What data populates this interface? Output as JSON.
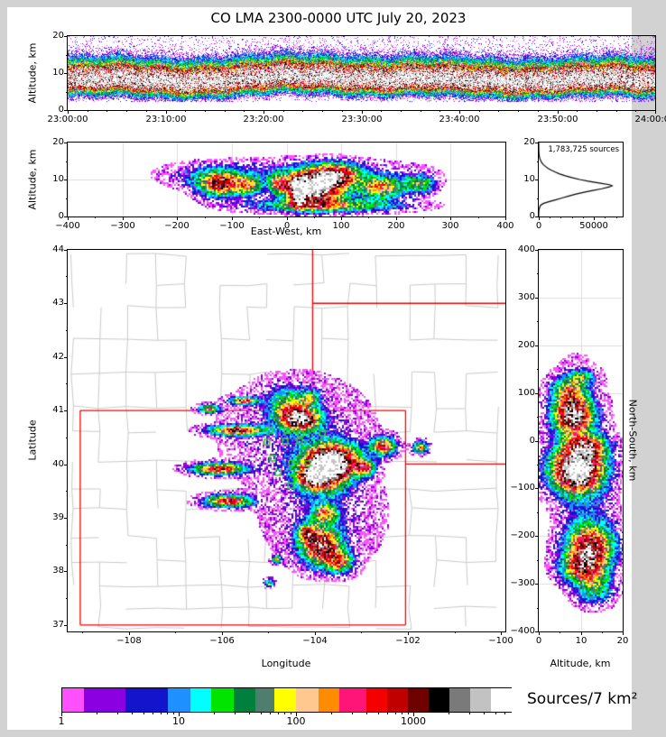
{
  "title": "CO LMA 2300-0000 UTC July 20, 2023",
  "colors": {
    "ramp": [
      "#ff50ff",
      "#8a00e0",
      "#1414cc",
      "#1e90ff",
      "#00ffff",
      "#00e400",
      "#00803c",
      "#4f7d6e",
      "#ffff00",
      "#ffc88e",
      "#ff8c00",
      "#ff1478",
      "#f40000",
      "#c00000",
      "#6e0000",
      "#000000",
      "#7a7a7a",
      "#c2c2c2",
      "#ffffff"
    ],
    "state_border": "#f00000",
    "county_border": "#c9c9c9",
    "gridline": "#dcdcdc",
    "station": "#35d035",
    "curve": "#000000",
    "background": "#d2d2d2",
    "figure": "#ffffff"
  },
  "chart_data": [
    {
      "id": "time_height",
      "type": "heatmap",
      "ylabel": "Altitude, km",
      "x_tick_labels": [
        "23:00:00",
        "23:10:00",
        "23:20:00",
        "23:30:00",
        "23:40:00",
        "23:50:00",
        "24:00:00"
      ],
      "x_tick_seconds": [
        0,
        600,
        1200,
        1800,
        2400,
        3000,
        3600
      ],
      "y_ticks": [
        0,
        10,
        20
      ],
      "y_range_km": [
        0,
        20
      ],
      "band": {
        "center": 8.0,
        "width_low": 2.9,
        "width_high": 4.0,
        "peak": 1.38,
        "bump_center_s": 1570,
        "bump_width_s": 420,
        "bump_amp": 1.1
      }
    },
    {
      "id": "ew_height",
      "type": "heatmap",
      "xlabel": "East-West, km",
      "ylabel": "Altitude, km",
      "x_ticks": [
        -400,
        -300,
        -200,
        -100,
        0,
        100,
        200,
        300,
        400
      ],
      "y_ticks": [
        0,
        10,
        20
      ],
      "x_range_km": [
        -400,
        400
      ],
      "y_range_km": [
        0,
        20
      ],
      "blobs": [
        [
          50,
          8,
          52,
          4.2,
          1.26
        ],
        [
          90,
          11.5,
          40,
          2.8,
          0.75
        ],
        [
          20,
          7,
          14,
          3.5,
          0.9
        ],
        [
          -15,
          9,
          18,
          2.5,
          0.5
        ],
        [
          -120,
          9,
          40,
          3.2,
          0.78
        ],
        [
          -70,
          8.5,
          22,
          2.5,
          0.45
        ],
        [
          170,
          8,
          42,
          3,
          0.58
        ],
        [
          240,
          9,
          28,
          2.4,
          0.42
        ],
        [
          70,
          3.2,
          130,
          1.7,
          0.5
        ],
        [
          30,
          12,
          190,
          3.5,
          0.14
        ],
        [
          -160,
          11,
          60,
          3,
          0.12
        ]
      ]
    },
    {
      "id": "alt_histogram",
      "type": "line",
      "annotation": "1,783,725 sources",
      "x_ticks": [
        0,
        50000
      ],
      "x_range": [
        0,
        76000
      ],
      "y_range_km": [
        0,
        20
      ],
      "points": [
        [
          0,
          0
        ],
        [
          1,
          0
        ],
        [
          2,
          300
        ],
        [
          3,
          1500
        ],
        [
          3.5,
          4000
        ],
        [
          4,
          9000
        ],
        [
          4.5,
          15000
        ],
        [
          5,
          21000
        ],
        [
          5.5,
          27000
        ],
        [
          6,
          33000
        ],
        [
          6.5,
          40000
        ],
        [
          7,
          48000
        ],
        [
          7.5,
          57000
        ],
        [
          8,
          64000
        ],
        [
          8.3,
          66500
        ],
        [
          8.6,
          64000
        ],
        [
          9,
          56000
        ],
        [
          9.5,
          46000
        ],
        [
          10,
          37000
        ],
        [
          10.5,
          30000
        ],
        [
          11,
          24000
        ],
        [
          11.5,
          19000
        ],
        [
          12,
          15000
        ],
        [
          12.5,
          11500
        ],
        [
          13,
          8500
        ],
        [
          13.5,
          6200
        ],
        [
          14,
          4300
        ],
        [
          14.5,
          2900
        ],
        [
          15,
          1900
        ],
        [
          15.5,
          1200
        ],
        [
          16,
          700
        ],
        [
          16.5,
          400
        ],
        [
          17,
          220
        ],
        [
          17.5,
          120
        ],
        [
          18,
          60
        ],
        [
          19,
          15
        ],
        [
          20,
          0
        ]
      ]
    },
    {
      "id": "plan_map",
      "type": "heatmap",
      "xlabel": "Longitude",
      "ylabel": "Latitude",
      "x_ticks": [
        -108,
        -106,
        -104,
        -102,
        -100
      ],
      "y_ticks": [
        37,
        38,
        39,
        40,
        41,
        42,
        43,
        44
      ],
      "lon_range": [
        -109.32,
        -99.903
      ],
      "lat_range": [
        36.88,
        43.995
      ],
      "blobs": [
        [
          -104.4,
          40.6,
          1.5,
          1.0,
          0.1
        ],
        [
          -103.8,
          39.0,
          1.2,
          0.9,
          0.09
        ],
        [
          -104.35,
          40.85,
          0.42,
          0.2,
          0.95
        ],
        [
          -104.55,
          41.12,
          0.45,
          0.3,
          0.4
        ],
        [
          -104.1,
          41.25,
          0.2,
          0.15,
          0.3
        ],
        [
          -103.82,
          39.95,
          0.5,
          0.38,
          1.26
        ],
        [
          -103.45,
          40.1,
          0.45,
          0.3,
          0.55
        ],
        [
          -104.1,
          39.75,
          0.3,
          0.2,
          0.6
        ],
        [
          -102.55,
          40.35,
          0.26,
          0.16,
          0.72
        ],
        [
          -101.75,
          40.33,
          0.16,
          0.11,
          0.55
        ],
        [
          -102.95,
          39.95,
          0.2,
          0.14,
          0.68
        ],
        [
          -106.3,
          41.05,
          0.22,
          0.07,
          0.6
        ],
        [
          -105.55,
          41.2,
          0.28,
          0.07,
          0.68
        ],
        [
          -105.7,
          40.65,
          0.55,
          0.09,
          0.78
        ],
        [
          -106.1,
          39.93,
          0.55,
          0.1,
          0.75
        ],
        [
          -105.9,
          39.33,
          0.5,
          0.11,
          0.72
        ],
        [
          -103.8,
          39.1,
          0.28,
          0.18,
          0.5
        ],
        [
          -103.9,
          38.5,
          0.42,
          0.33,
          0.85
        ],
        [
          -103.5,
          38.2,
          0.3,
          0.2,
          0.55
        ],
        [
          -104.2,
          38.75,
          0.2,
          0.15,
          0.5
        ],
        [
          -104.85,
          38.25,
          0.1,
          0.07,
          0.5
        ],
        [
          -105.0,
          37.8,
          0.1,
          0.07,
          0.42
        ]
      ],
      "state_borders": [
        [
          -109.05,
          37,
          -102.05,
          37
        ],
        [
          -109.05,
          41,
          -102.05,
          41
        ],
        [
          -109.05,
          37,
          -109.05,
          41
        ],
        [
          -102.05,
          37,
          -102.05,
          41
        ],
        [
          -104.05,
          41,
          -104.05,
          43.995
        ],
        [
          -104.05,
          42.998,
          -99.903,
          42.998
        ],
        [
          -102.05,
          40.003,
          -99.903,
          40.003
        ]
      ],
      "stations": [
        [
          -104.97,
          40.63
        ],
        [
          -104.6,
          40.63
        ],
        [
          -104.31,
          40.56
        ],
        [
          -103.84,
          40.58
        ],
        [
          -105.03,
          40.41
        ],
        [
          -104.64,
          40.43
        ],
        [
          -104.33,
          40.43
        ],
        [
          -104.5,
          40.02
        ],
        [
          -104.91,
          40.11
        ],
        [
          -104.16,
          40.01
        ],
        [
          -104.52,
          39.6
        ],
        [
          -104.79,
          39.84
        ]
      ]
    },
    {
      "id": "ns_height",
      "type": "heatmap",
      "xlabel": "Altitude, km",
      "ylabel": "North-South, km",
      "x_ticks": [
        0,
        10,
        20
      ],
      "y_ticks": [
        400,
        300,
        200,
        100,
        0,
        -100,
        -200,
        -300,
        -400
      ],
      "x_range_km": [
        0,
        20
      ],
      "y_range_km": [
        -400,
        400
      ],
      "blobs": [
        [
          8,
          55,
          4.5,
          36,
          1.0
        ],
        [
          7,
          105,
          4,
          28,
          0.5
        ],
        [
          10,
          135,
          3,
          15,
          0.35
        ],
        [
          9,
          -60,
          6,
          46,
          1.26
        ],
        [
          11,
          -10,
          5,
          25,
          0.6
        ],
        [
          12,
          -225,
          5.5,
          45,
          0.8
        ],
        [
          10,
          -265,
          5,
          30,
          0.55
        ],
        [
          13,
          -305,
          4.5,
          35,
          0.35
        ],
        [
          9,
          0,
          7,
          150,
          0.12
        ],
        [
          12,
          -180,
          6,
          60,
          0.15
        ]
      ]
    },
    {
      "id": "colorbar",
      "type": "legend",
      "label": "Sources/7 km²",
      "tick_labels": [
        "1",
        "10",
        "100",
        "1000"
      ],
      "tick_values": [
        1,
        10,
        100,
        1000
      ],
      "scale": "log",
      "range": [
        1,
        6800
      ],
      "segments": [
        {
          "color": "#ff50ff",
          "w": 24
        },
        {
          "color": "#8a00e0",
          "w": 46
        },
        {
          "color": "#1414cc",
          "w": 47
        },
        {
          "color": "#1e90ff",
          "w": 25
        },
        {
          "color": "#00ffff",
          "w": 23
        },
        {
          "color": "#00e400",
          "w": 25
        },
        {
          "color": "#00803c",
          "w": 24
        },
        {
          "color": "#4f7d6e",
          "w": 21
        },
        {
          "color": "#ffff00",
          "w": 24
        },
        {
          "color": "#ffc88e",
          "w": 25
        },
        {
          "color": "#ff8c00",
          "w": 23
        },
        {
          "color": "#ff1478",
          "w": 30
        },
        {
          "color": "#f40000",
          "w": 23
        },
        {
          "color": "#c00000",
          "w": 23
        },
        {
          "color": "#6e0000",
          "w": 23
        },
        {
          "color": "#000000",
          "w": 23
        },
        {
          "color": "#7a7a7a",
          "w": 23
        },
        {
          "color": "#c2c2c2",
          "w": 23
        },
        {
          "color": "#ffffff",
          "w": 23
        }
      ]
    }
  ]
}
